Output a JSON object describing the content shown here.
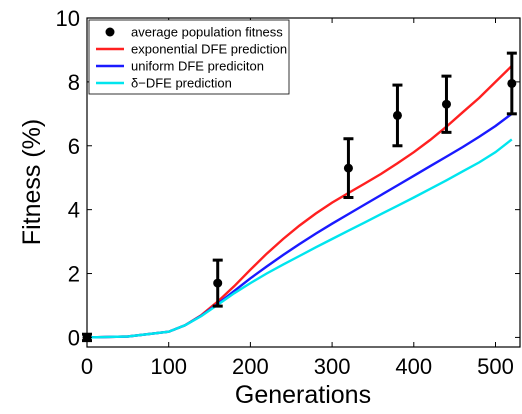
{
  "chart_data": {
    "type": "line",
    "xlabel": "Generations",
    "ylabel": "Fitness (%)",
    "xlim": [
      0,
      530
    ],
    "ylim": [
      -0.3,
      10
    ],
    "xticks": [
      0,
      100,
      200,
      300,
      400,
      500
    ],
    "yticks": [
      0,
      2,
      4,
      6,
      8,
      10
    ],
    "x_tick_labels": [
      "0",
      "100",
      "200",
      "300",
      "400",
      "500"
    ],
    "y_tick_labels": [
      "0",
      "2",
      "4",
      "6",
      "8",
      "10"
    ],
    "grid": false,
    "legend_position": "top-left",
    "scatter": {
      "name": "average population fitness",
      "color": "#000000",
      "x": [
        0,
        160,
        320,
        380,
        440,
        520
      ],
      "y": [
        0.0,
        1.7,
        5.3,
        6.95,
        7.3,
        7.95
      ],
      "err": [
        0.1,
        0.72,
        0.92,
        0.95,
        0.88,
        0.95
      ]
    },
    "series": [
      {
        "name": "exponential DFE prediction",
        "color": "#ff2020",
        "x": [
          0,
          50,
          100,
          120,
          140,
          160,
          180,
          200,
          220,
          240,
          260,
          280,
          300,
          320,
          340,
          360,
          380,
          400,
          420,
          440,
          460,
          480,
          500,
          520
        ],
        "y": [
          0,
          0.03,
          0.18,
          0.38,
          0.7,
          1.12,
          1.6,
          2.12,
          2.62,
          3.08,
          3.5,
          3.88,
          4.22,
          4.52,
          4.82,
          5.12,
          5.45,
          5.8,
          6.18,
          6.6,
          7.05,
          7.5,
          8.0,
          8.5
        ]
      },
      {
        "name": "uniform DFE prediciton",
        "color": "#1a1aff",
        "x": [
          0,
          50,
          100,
          120,
          140,
          160,
          180,
          200,
          220,
          240,
          260,
          280,
          300,
          320,
          340,
          360,
          380,
          400,
          420,
          440,
          460,
          480,
          500,
          520
        ],
        "y": [
          0,
          0.03,
          0.18,
          0.38,
          0.68,
          1.05,
          1.45,
          1.85,
          2.22,
          2.58,
          2.92,
          3.25,
          3.56,
          3.86,
          4.16,
          4.46,
          4.76,
          5.06,
          5.36,
          5.66,
          5.96,
          6.28,
          6.62,
          7.0
        ]
      },
      {
        "name": "δ−DFE prediction",
        "color": "#00e5ee",
        "x": [
          0,
          50,
          100,
          120,
          140,
          160,
          180,
          200,
          220,
          240,
          260,
          280,
          300,
          320,
          340,
          360,
          380,
          400,
          420,
          440,
          460,
          480,
          500,
          520
        ],
        "y": [
          0,
          0.03,
          0.18,
          0.38,
          0.67,
          1.02,
          1.38,
          1.7,
          2.0,
          2.28,
          2.55,
          2.82,
          3.08,
          3.34,
          3.6,
          3.86,
          4.12,
          4.38,
          4.65,
          4.92,
          5.2,
          5.48,
          5.8,
          6.2
        ]
      }
    ]
  }
}
